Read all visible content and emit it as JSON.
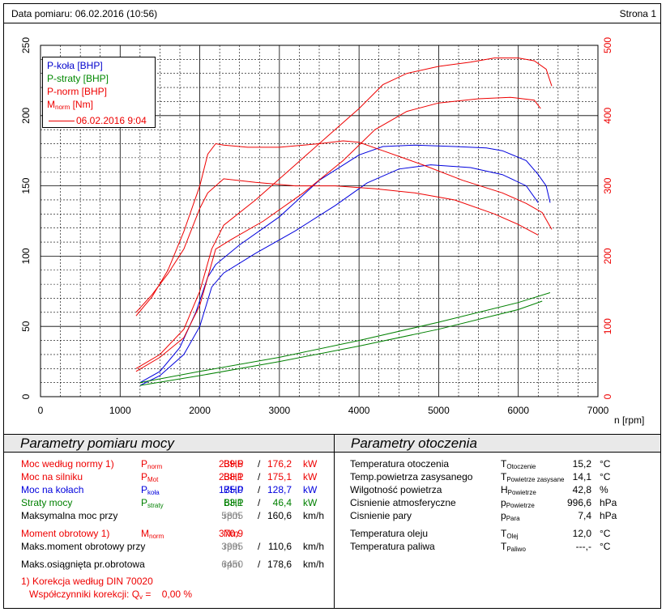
{
  "header": {
    "date_label": "Data pomiaru: 06.02.2016 (10:56)",
    "page_label": "Strona 1"
  },
  "chart_data": {
    "type": "line",
    "xlabel": "n [rpm]",
    "xlim": [
      0,
      7000
    ],
    "x_ticks": [
      "0",
      "1000",
      "2000",
      "3000",
      "4000",
      "5000",
      "6000",
      "7000"
    ],
    "ylim_left": [
      0,
      250
    ],
    "y_ticks_left": [
      "0",
      "50",
      "100",
      "150",
      "200",
      "250"
    ],
    "ylim_right": [
      0,
      500
    ],
    "y_ticks_right": [
      "0",
      "100",
      "200",
      "300",
      "400",
      "500"
    ],
    "grid": true,
    "legend_position": "top-left",
    "legend": [
      "P-koła [BHP]",
      "P-straty [BHP]",
      "P-norm [BHP]",
      "Mnorm [Nm]",
      "06.02.2016 9:04"
    ],
    "colors": {
      "p_kola": "#0000dd",
      "p_straty": "#008000",
      "p_norm": "#ee0000",
      "m_norm": "#ee0000"
    },
    "series": [
      {
        "name": "P-koła [BHP]",
        "axis": "left",
        "color": "#0000dd",
        "points": [
          [
            1250,
            10
          ],
          [
            1500,
            18
          ],
          [
            1750,
            35
          ],
          [
            1950,
            60
          ],
          [
            2100,
            85
          ],
          [
            2200,
            94
          ],
          [
            2500,
            108
          ],
          [
            3000,
            128
          ],
          [
            3500,
            154
          ],
          [
            4000,
            172
          ],
          [
            4300,
            178
          ],
          [
            4700,
            179
          ],
          [
            5200,
            178
          ],
          [
            5600,
            177
          ],
          [
            5800,
            175
          ],
          [
            6100,
            168
          ],
          [
            6250,
            158
          ],
          [
            6350,
            150
          ],
          [
            6400,
            138
          ]
        ]
      },
      {
        "name": "P-koła [BHP]",
        "axis": "left",
        "color": "#0000dd",
        "points": [
          [
            1250,
            8
          ],
          [
            1500,
            15
          ],
          [
            1800,
            30
          ],
          [
            2000,
            50
          ],
          [
            2150,
            78
          ],
          [
            2300,
            88
          ],
          [
            2700,
            102
          ],
          [
            3200,
            118
          ],
          [
            3700,
            136
          ],
          [
            4100,
            152
          ],
          [
            4500,
            162
          ],
          [
            4900,
            165
          ],
          [
            5400,
            163
          ],
          [
            5800,
            158
          ],
          [
            6100,
            150
          ],
          [
            6250,
            138
          ]
        ]
      },
      {
        "name": "P-straty [BHP]",
        "axis": "left",
        "color": "#008000",
        "points": [
          [
            1250,
            10
          ],
          [
            2000,
            18
          ],
          [
            3000,
            28
          ],
          [
            4000,
            40
          ],
          [
            5000,
            53
          ],
          [
            6000,
            67
          ],
          [
            6400,
            74
          ]
        ]
      },
      {
        "name": "P-straty [BHP]",
        "axis": "left",
        "color": "#008000",
        "points": [
          [
            1250,
            8
          ],
          [
            2000,
            15
          ],
          [
            3000,
            25
          ],
          [
            4000,
            36
          ],
          [
            5000,
            48
          ],
          [
            6000,
            62
          ],
          [
            6300,
            68
          ]
        ]
      },
      {
        "name": "P-norm [BHP]",
        "axis": "left",
        "color": "#ee0000",
        "points": [
          [
            1200,
            20
          ],
          [
            1500,
            30
          ],
          [
            1800,
            48
          ],
          [
            2000,
            75
          ],
          [
            2150,
            105
          ],
          [
            2300,
            122
          ],
          [
            2700,
            140
          ],
          [
            3200,
            165
          ],
          [
            3600,
            185
          ],
          [
            4000,
            205
          ],
          [
            4300,
            222
          ],
          [
            4600,
            230
          ],
          [
            5000,
            235
          ],
          [
            5400,
            238
          ],
          [
            5700,
            241
          ],
          [
            6000,
            241
          ],
          [
            6200,
            239
          ],
          [
            6350,
            233
          ],
          [
            6420,
            221
          ]
        ]
      },
      {
        "name": "P-norm [BHP]",
        "axis": "left",
        "color": "#ee0000",
        "points": [
          [
            1200,
            18
          ],
          [
            1500,
            28
          ],
          [
            1800,
            42
          ],
          [
            2000,
            65
          ],
          [
            2200,
            105
          ],
          [
            2400,
            112
          ],
          [
            2800,
            125
          ],
          [
            3300,
            145
          ],
          [
            3800,
            168
          ],
          [
            4200,
            190
          ],
          [
            4600,
            203
          ],
          [
            5000,
            209
          ],
          [
            5500,
            212
          ],
          [
            5900,
            213
          ],
          [
            6200,
            211
          ],
          [
            6280,
            205
          ]
        ]
      },
      {
        "name": "Mnorm [Nm]",
        "axis": "right",
        "color": "#ee0000",
        "points": [
          [
            1200,
            115
          ],
          [
            1400,
            142
          ],
          [
            1600,
            180
          ],
          [
            1800,
            235
          ],
          [
            2000,
            300
          ],
          [
            2100,
            345
          ],
          [
            2200,
            360
          ],
          [
            2300,
            358
          ],
          [
            2600,
            355
          ],
          [
            3000,
            355
          ],
          [
            3500,
            360
          ],
          [
            3800,
            364
          ],
          [
            4000,
            362
          ],
          [
            4300,
            350
          ],
          [
            4800,
            330
          ],
          [
            5300,
            308
          ],
          [
            5800,
            290
          ],
          [
            6100,
            275
          ],
          [
            6300,
            262
          ],
          [
            6420,
            238
          ]
        ]
      },
      {
        "name": "Mnorm [Nm]",
        "axis": "right",
        "color": "#ee0000",
        "points": [
          [
            1200,
            120
          ],
          [
            1400,
            145
          ],
          [
            1600,
            175
          ],
          [
            1800,
            210
          ],
          [
            2000,
            268
          ],
          [
            2100,
            290
          ],
          [
            2300,
            310
          ],
          [
            2700,
            305
          ],
          [
            3200,
            300
          ],
          [
            3700,
            300
          ],
          [
            4200,
            296
          ],
          [
            4700,
            290
          ],
          [
            5200,
            280
          ],
          [
            5700,
            260
          ],
          [
            6000,
            245
          ],
          [
            6250,
            230
          ]
        ]
      }
    ]
  },
  "left_panel": {
    "title": "Parametry pomiaru mocy",
    "rows": [
      {
        "label": "Moc według normy 1)",
        "sym": "P",
        "sub": "norm",
        "v1": "239,5",
        "u1": "BHP",
        "sep": "/",
        "v2": "176,2",
        "u2": "kW",
        "color": "#ee0000"
      },
      {
        "label": "Moc na silniku",
        "sym": "P",
        "sub": "Mot",
        "v1": "238,1",
        "u1": "BHP",
        "sep": "/",
        "v2": "175,1",
        "u2": "kW",
        "color": "#ee0000"
      },
      {
        "label": "Moc na kołach",
        "sym": "P",
        "sub": "koła",
        "v1": "175,0",
        "u1": "BHP",
        "sep": "/",
        "v2": "128,7",
        "u2": "kW",
        "color": "#0000dd"
      },
      {
        "label": "Straty mocy",
        "sym": "P",
        "sub": "straty",
        "v1": "63,1",
        "u1": "BHP",
        "sep": "/",
        "v2": "46,4",
        "u2": "kW",
        "color": "#008000"
      },
      {
        "label": "Maksymalna moc przy",
        "sym": "",
        "sub": "",
        "v1": "5805",
        "u1": "rpm",
        "sep": "/",
        "v2": "160,6",
        "u2": "km/h",
        "color": "#000000"
      },
      {
        "label": "Moment obrotowy 1)",
        "sym": "M",
        "sub": "norm",
        "v1": "370,9",
        "u1": "Nm",
        "sep": "",
        "v2": "",
        "u2": "",
        "color": "#ee0000"
      },
      {
        "label": "Maks.moment obrotowy przy",
        "sym": "",
        "sub": "",
        "v1": "3995",
        "u1": "rpm",
        "sep": "/",
        "v2": "110,6",
        "u2": "km/h",
        "color": "#000000"
      },
      {
        "label": "Maks.osiągnięta pr.obrotowa",
        "sym": "",
        "sub": "",
        "v1": "6450",
        "u1": "rpm",
        "sep": "/",
        "v2": "178,6",
        "u2": "km/h",
        "color": "#000000"
      }
    ],
    "footnote1": "1) Korekcja według DIN 70020",
    "footnote2": "Współczynniki korekcji: Q",
    "footnote2_sub": "v",
    "footnote2_val": " =    0,00 %"
  },
  "right_panel": {
    "title": "Parametry otoczenia",
    "rows": [
      {
        "label": "Temperatura otoczenia",
        "sym": "T",
        "sub": "Otoczenie",
        "val": "15,2",
        "unit": "°C"
      },
      {
        "label": "Temp.powietrza zasysanego",
        "sym": "T",
        "sub": "Powietrze zasysane",
        "val": "14,1",
        "unit": "°C"
      },
      {
        "label": "Wilgotność powietrza",
        "sym": "H",
        "sub": "Powietrze",
        "val": "42,8",
        "unit": "%"
      },
      {
        "label": "Cisnienie atmosferyczne",
        "sym": "p",
        "sub": "Powietrze",
        "val": "996,6",
        "unit": "hPa"
      },
      {
        "label": "Cisnienie pary",
        "sym": "p",
        "sub": "Para",
        "val": "7,4",
        "unit": "hPa"
      },
      {
        "label": "Temperatura oleju",
        "sym": "T",
        "sub": "Olej",
        "val": "12,0",
        "unit": "°C"
      },
      {
        "label": "Temperatura paliwa",
        "sym": "T",
        "sub": "Paliwo",
        "val": "---,-",
        "unit": "°C"
      }
    ]
  }
}
